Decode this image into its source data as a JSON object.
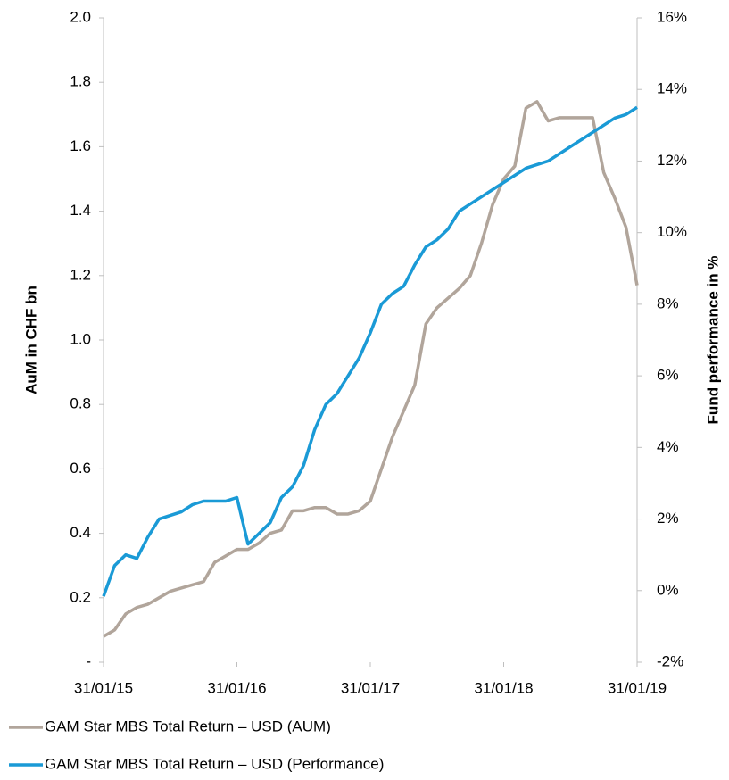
{
  "chart_data": {
    "type": "line",
    "y_axis_label": "AuM in CHF bn",
    "y2_axis_label": "Fund performance in %",
    "x": [
      0,
      1,
      2,
      3,
      4,
      5,
      6,
      7,
      8,
      9,
      10,
      11,
      12,
      13,
      14,
      15,
      16,
      17,
      18,
      19,
      20,
      21,
      22,
      23,
      24,
      25,
      26,
      27,
      28,
      29,
      30,
      31,
      32,
      33,
      34,
      35,
      36,
      37,
      38,
      39,
      40,
      41,
      42,
      43,
      44,
      45,
      46,
      47,
      48
    ],
    "xlim": [
      0,
      48
    ],
    "xticks": [
      {
        "value": 0,
        "label": "31/01/15"
      },
      {
        "value": 12,
        "label": "31/01/16"
      },
      {
        "value": 24,
        "label": "31/01/17"
      },
      {
        "value": 36,
        "label": "31/01/18"
      },
      {
        "value": 48,
        "label": "31/01/19"
      }
    ],
    "ylim": [
      0,
      2
    ],
    "yticks": [
      {
        "value": 0,
        "label": "-"
      },
      0.2,
      0.4,
      0.6,
      0.8,
      {
        "value": 1,
        "label": "1.0"
      },
      1.2,
      1.4,
      1.6,
      1.8,
      {
        "value": 2,
        "label": "2.0"
      }
    ],
    "y2lim": [
      -2,
      16
    ],
    "y2ticks": [
      {
        "value": -2,
        "label": "-2%"
      },
      {
        "value": 0,
        "label": "0%"
      },
      {
        "value": 2,
        "label": "2%"
      },
      {
        "value": 4,
        "label": "4%"
      },
      {
        "value": 6,
        "label": "6%"
      },
      {
        "value": 8,
        "label": "8%"
      },
      {
        "value": 10,
        "label": "10%"
      },
      {
        "value": 12,
        "label": "12%"
      },
      {
        "value": 14,
        "label": "14%"
      },
      {
        "value": 16,
        "label": "16%"
      }
    ],
    "series": [
      {
        "name": "GAM Star MBS Total Return – USD (AUM)",
        "color": "#b1a59b",
        "axis": "y",
        "values": [
          0.08,
          0.1,
          0.15,
          0.17,
          0.18,
          0.2,
          0.22,
          0.23,
          0.24,
          0.25,
          0.31,
          0.33,
          0.35,
          0.35,
          0.37,
          0.4,
          0.41,
          0.47,
          0.47,
          0.48,
          0.48,
          0.46,
          0.46,
          0.47,
          0.5,
          0.6,
          0.7,
          0.78,
          0.86,
          1.05,
          1.1,
          1.13,
          1.16,
          1.2,
          1.3,
          1.42,
          1.5,
          1.54,
          1.72,
          1.74,
          1.68,
          1.69,
          1.69,
          1.69,
          1.69,
          1.52,
          1.44,
          1.35,
          1.17
        ]
      },
      {
        "name": "GAM Star MBS Total Return – USD (Performance)",
        "color": "#1a9ad6",
        "axis": "y2",
        "values": [
          -0.16,
          0.7,
          1.0,
          0.9,
          1.5,
          2.0,
          2.1,
          2.2,
          2.4,
          2.5,
          2.5,
          2.5,
          2.6,
          1.3,
          1.6,
          1.9,
          2.6,
          2.9,
          3.5,
          4.5,
          5.2,
          5.5,
          6.0,
          6.5,
          7.2,
          8.0,
          8.3,
          8.5,
          9.1,
          9.6,
          9.8,
          10.1,
          10.6,
          10.8,
          11.0,
          11.2,
          11.4,
          11.6,
          11.8,
          11.9,
          12.0,
          12.2,
          12.4,
          12.6,
          12.8,
          13.0,
          13.2,
          13.3,
          13.5
        ]
      }
    ]
  }
}
